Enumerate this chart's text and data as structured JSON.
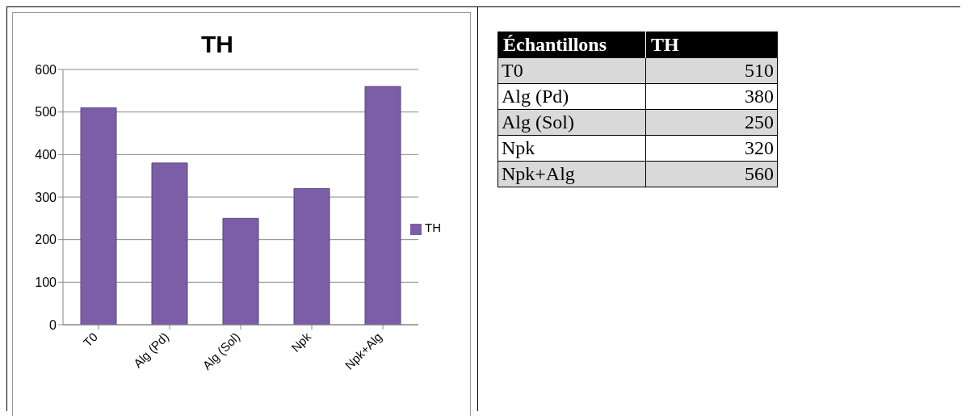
{
  "chart_data": [
    {
      "type": "bar",
      "title": "TH",
      "categories": [
        "T0",
        "Alg (Pd)",
        "Alg (Sol)",
        "Npk",
        "Npk+Alg"
      ],
      "series": [
        {
          "name": "TH",
          "color": "#7b5ea7",
          "values": [
            510,
            380,
            250,
            320,
            560
          ]
        }
      ],
      "ylim": [
        0,
        600
      ],
      "yticks": [
        0,
        100,
        200,
        300,
        400,
        500,
        600
      ],
      "grid": "y",
      "legend": "right"
    },
    {
      "type": "other",
      "xlabel": "Échantillons",
      "categories": [
        "T0",
        "Alg (Pd)",
        "Alg (Sol)",
        "Npk",
        "Npk+Alg"
      ],
      "series": [
        {
          "name": "TH",
          "values": [
            510,
            380,
            250,
            320,
            560
          ],
          "value_labels": [
            "510",
            "380",
            "250",
            "320",
            "560"
          ]
        }
      ]
    }
  ]
}
